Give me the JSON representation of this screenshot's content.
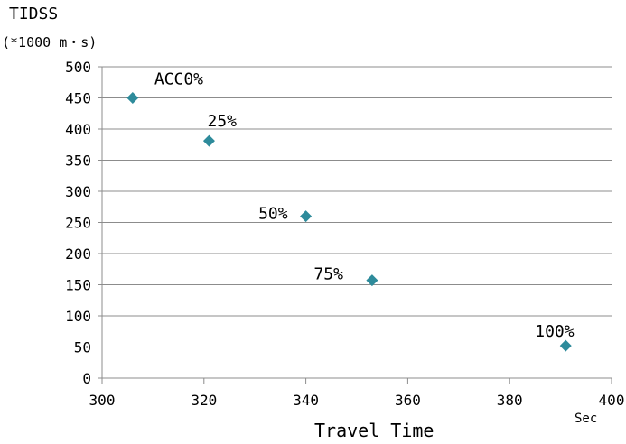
{
  "chart_data": {
    "type": "scatter",
    "ylabel": "TIDSS",
    "yunit": "(*1000 m・s)",
    "xlabel": "Travel Time",
    "xunit": "Sec",
    "xlim": [
      300,
      400
    ],
    "ylim": [
      0,
      500
    ],
    "xticks": [
      300,
      320,
      340,
      360,
      380,
      400
    ],
    "yticks": [
      0,
      50,
      100,
      150,
      200,
      250,
      300,
      350,
      400,
      450,
      500
    ],
    "grid": "horizontal",
    "marker": "diamond",
    "marker_color": "#2E8B9B",
    "points": [
      {
        "label": "ACC0%",
        "x": 306,
        "y": 450
      },
      {
        "label": "25%",
        "x": 321,
        "y": 381
      },
      {
        "label": "50%",
        "x": 340,
        "y": 260
      },
      {
        "label": "75%",
        "x": 353,
        "y": 157
      },
      {
        "label": "100%",
        "x": 391,
        "y": 52
      }
    ]
  }
}
